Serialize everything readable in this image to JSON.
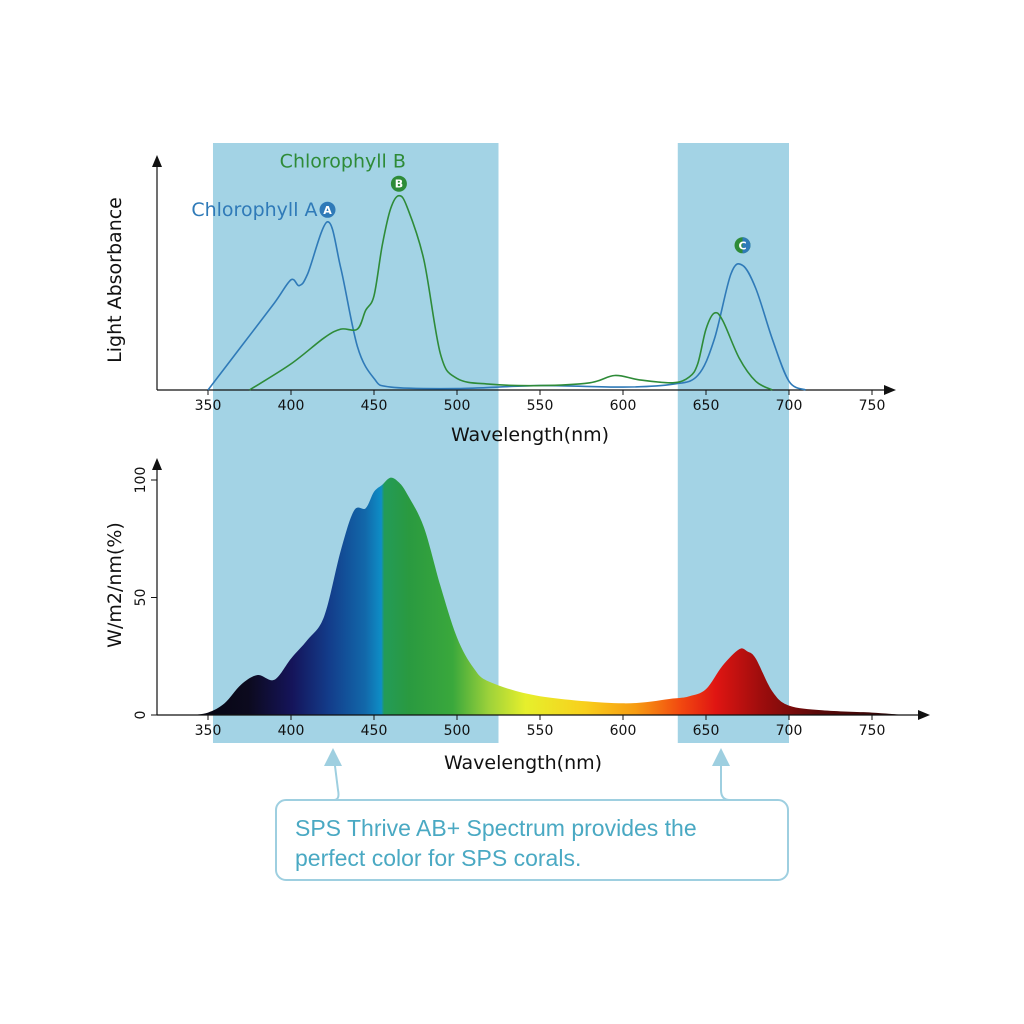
{
  "chart_data": [
    {
      "type": "line",
      "xlabel": "Wavelength(nm)",
      "ylabel": "Light Absorbance",
      "xlim": [
        350,
        760
      ],
      "x_ticks": [
        350,
        400,
        450,
        500,
        550,
        600,
        650,
        700,
        750
      ],
      "highlight_bands": [
        [
          353,
          525
        ],
        [
          633,
          700
        ]
      ],
      "series": [
        {
          "name": "Chlorophyll A",
          "marker": "A",
          "color": "#2f7ab8",
          "x": [
            350,
            370,
            390,
            400,
            405,
            410,
            422,
            430,
            440,
            450,
            460,
            500,
            550,
            600,
            630,
            645,
            655,
            665,
            672,
            680,
            690,
            700,
            710
          ],
          "y": [
            0,
            30,
            60,
            76,
            72,
            80,
            116,
            84,
            30,
            8,
            2,
            1,
            3,
            2,
            4,
            10,
            35,
            80,
            86,
            70,
            35,
            6,
            0
          ]
        },
        {
          "name": "Chlorophyll B",
          "marker": "B",
          "color": "#2e8b38",
          "x": [
            375,
            400,
            420,
            430,
            440,
            445,
            450,
            455,
            460,
            465,
            470,
            480,
            490,
            500,
            520,
            550,
            580,
            595,
            610,
            630,
            640,
            645,
            650,
            655,
            660,
            670,
            680,
            690
          ],
          "y": [
            0,
            18,
            36,
            42,
            42,
            55,
            65,
            100,
            125,
            134,
            126,
            90,
            25,
            8,
            4,
            3,
            5,
            10,
            7,
            5,
            9,
            18,
            42,
            53,
            48,
            22,
            6,
            0
          ]
        }
      ],
      "extra_markers": [
        {
          "label": "C",
          "x": 672
        }
      ]
    },
    {
      "type": "area",
      "xlabel": "Wavelength(nm)",
      "ylabel": "W/m2/nm(%)",
      "xlim": [
        350,
        760
      ],
      "ylim": [
        0,
        100
      ],
      "x_ticks": [
        350,
        400,
        450,
        500,
        550,
        600,
        650,
        700,
        750
      ],
      "y_ticks": [
        0,
        50,
        100
      ],
      "highlight_bands": [
        [
          353,
          525
        ],
        [
          633,
          700
        ]
      ],
      "x": [
        340,
        350,
        360,
        370,
        380,
        390,
        400,
        410,
        420,
        430,
        438,
        445,
        450,
        455,
        460,
        465,
        470,
        480,
        490,
        500,
        510,
        520,
        550,
        600,
        630,
        640,
        650,
        660,
        670,
        675,
        680,
        690,
        700,
        720,
        750,
        770
      ],
      "y": [
        0,
        1,
        5,
        13,
        17,
        15,
        24,
        32,
        42,
        70,
        87,
        88,
        95,
        98,
        101,
        99,
        94,
        80,
        55,
        33,
        20,
        14,
        8,
        5,
        7,
        8,
        11,
        21,
        28,
        27,
        24,
        10,
        4,
        2,
        1,
        0
      ]
    }
  ],
  "callout": {
    "text_line1": "SPS Thrive AB+ Spectrum provides the",
    "text_line2": "perfect color for SPS corals."
  },
  "colors": {
    "band": "#a3d3e5",
    "callout": "#4aa9c3",
    "callout_border": "#9ecfe0"
  }
}
